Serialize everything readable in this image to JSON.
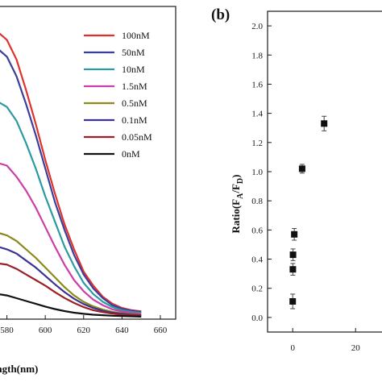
{
  "chart_data": [
    {
      "type": "line",
      "xlabel": "length(nm)",
      "xlim": [
        568,
        668
      ],
      "ylim": [
        0,
        1.12
      ],
      "x_ticks": [
        "580",
        "600",
        "620",
        "640",
        "660"
      ],
      "legend": {
        "position": "top-right",
        "entries": [
          "100nM",
          "50nM",
          "10nM",
          "1.5nM",
          "0.5nM",
          "0.1nM",
          "0.05nM",
          "0nM"
        ]
      },
      "x": [
        570,
        575,
        580,
        585,
        590,
        595,
        600,
        605,
        610,
        615,
        620,
        625,
        630,
        635,
        640,
        645,
        650
      ],
      "series": [
        {
          "name": "100nM",
          "color": "#e0312b",
          "values": [
            1.01,
            1.03,
            1.0,
            0.93,
            0.82,
            0.7,
            0.57,
            0.45,
            0.34,
            0.25,
            0.17,
            0.12,
            0.08,
            0.055,
            0.04,
            0.032,
            0.028
          ]
        },
        {
          "name": "50nM",
          "color": "#3b3f9c",
          "values": [
            0.95,
            0.97,
            0.94,
            0.87,
            0.77,
            0.66,
            0.54,
            0.42,
            0.32,
            0.23,
            0.16,
            0.11,
            0.075,
            0.05,
            0.037,
            0.03,
            0.026
          ]
        },
        {
          "name": "10nM",
          "color": "#2c9aa1",
          "values": [
            0.76,
            0.78,
            0.76,
            0.71,
            0.63,
            0.54,
            0.44,
            0.35,
            0.26,
            0.19,
            0.13,
            0.09,
            0.062,
            0.043,
            0.032,
            0.026,
            0.022
          ]
        },
        {
          "name": "1.5nM",
          "color": "#cc3ea6",
          "values": [
            0.54,
            0.56,
            0.55,
            0.51,
            0.46,
            0.4,
            0.33,
            0.26,
            0.195,
            0.14,
            0.1,
            0.07,
            0.05,
            0.035,
            0.027,
            0.022,
            0.019
          ]
        },
        {
          "name": "0.5nM",
          "color": "#8c8a1c",
          "values": [
            0.3,
            0.31,
            0.3,
            0.28,
            0.25,
            0.22,
            0.185,
            0.15,
            0.115,
            0.085,
            0.062,
            0.046,
            0.034,
            0.026,
            0.021,
            0.018,
            0.016
          ]
        },
        {
          "name": "0.1nM",
          "color": "#3a3390",
          "values": [
            0.25,
            0.26,
            0.25,
            0.235,
            0.21,
            0.185,
            0.155,
            0.125,
            0.097,
            0.073,
            0.054,
            0.04,
            0.03,
            0.023,
            0.019,
            0.016,
            0.014
          ]
        },
        {
          "name": "0.05nM",
          "color": "#9b1f26",
          "values": [
            0.19,
            0.2,
            0.195,
            0.18,
            0.16,
            0.14,
            0.12,
            0.097,
            0.076,
            0.058,
            0.043,
            0.032,
            0.025,
            0.02,
            0.016,
            0.014,
            0.012
          ]
        },
        {
          "name": "0nM",
          "color": "#111111",
          "values": [
            0.08,
            0.09,
            0.085,
            0.075,
            0.065,
            0.055,
            0.045,
            0.036,
            0.029,
            0.023,
            0.019,
            0.016,
            0.014,
            0.012,
            0.011,
            0.01,
            0.009
          ]
        }
      ]
    },
    {
      "type": "scatter",
      "panel_label": "(b)",
      "ylabel_main": "Ratio(F",
      "ylabel_sub_a": "A",
      "ylabel_mid": "/F",
      "ylabel_sub_d": "D",
      "ylabel_end": ")",
      "xlim": [
        -8,
        32
      ],
      "ylim": [
        -0.1,
        2.1
      ],
      "x_ticks": [
        "0",
        "20"
      ],
      "y_ticks": [
        "0.0",
        "0.2",
        "0.4",
        "0.6",
        "0.8",
        "1.0",
        "1.2",
        "1.4",
        "1.6",
        "1.8",
        "2.0"
      ],
      "points": [
        {
          "x": 0,
          "y": 0.11,
          "err": 0.05
        },
        {
          "x": 0.05,
          "y": 0.33,
          "err": 0.04
        },
        {
          "x": 0.1,
          "y": 0.43,
          "err": 0.04
        },
        {
          "x": 0.5,
          "y": 0.57,
          "err": 0.04
        },
        {
          "x": 3,
          "y": 1.02,
          "err": 0.03
        },
        {
          "x": 10,
          "y": 1.33,
          "err": 0.05
        }
      ]
    }
  ]
}
